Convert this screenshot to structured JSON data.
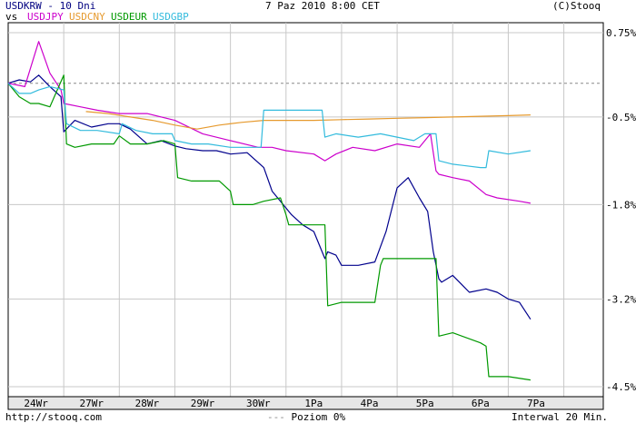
{
  "header": {
    "title": "USDKRW - 10 Dni",
    "vs_label": "vs",
    "date": "7 Paz 2010 8:00 CET",
    "copyright": "(C)Stooq"
  },
  "footer": {
    "url": "http://stooq.com",
    "baseline_label": "Poziom 0%",
    "interval": "Interwal 20 Min."
  },
  "chart_data": {
    "type": "line",
    "x_categories": [
      "24Wr",
      "27Wr",
      "28Wr",
      "29Wr",
      "30Wr",
      "1Pa",
      "4Pa",
      "5Pa",
      "6Pa",
      "7Pa"
    ],
    "y_ticks": [
      "0.75%",
      "-0.5%",
      "-1.8%",
      "-3.2%",
      "-4.5%"
    ],
    "y_tick_values": [
      0.75,
      -0.5,
      -1.8,
      -3.2,
      -4.5
    ],
    "ylim": [
      -4.5,
      0.75
    ],
    "baseline_value": 0,
    "grid": true,
    "legend_placement": "top-left",
    "series": [
      {
        "name": "USDKRW",
        "color": "#00008c",
        "x": [
          0,
          0.2,
          0.4,
          0.55,
          0.75,
          0.95,
          1.0,
          1.2,
          1.5,
          1.8,
          2.0,
          2.2,
          2.5,
          2.75,
          3.0,
          3.2,
          3.5,
          3.75,
          4.0,
          4.3,
          4.6,
          4.75,
          4.9,
          5.1,
          5.3,
          5.5,
          5.7,
          5.75,
          5.9,
          6.0,
          6.3,
          6.6,
          6.8,
          7.0,
          7.2,
          7.4,
          7.55,
          7.65,
          7.75,
          7.8,
          8.0,
          8.3,
          8.6,
          8.8,
          9.0,
          9.2,
          9.4
        ],
        "y": [
          0,
          0.05,
          0.02,
          0.12,
          -0.05,
          -0.2,
          -0.72,
          -0.55,
          -0.65,
          -0.6,
          -0.6,
          -0.68,
          -0.9,
          -0.85,
          -0.93,
          -0.97,
          -1.0,
          -1.0,
          -1.05,
          -1.03,
          -1.25,
          -1.6,
          -1.75,
          -1.95,
          -2.1,
          -2.2,
          -2.6,
          -2.5,
          -2.55,
          -2.7,
          -2.7,
          -2.65,
          -2.2,
          -1.55,
          -1.4,
          -1.7,
          -1.9,
          -2.5,
          -2.9,
          -2.95,
          -2.85,
          -3.1,
          -3.05,
          -3.1,
          -3.2,
          -3.25,
          -3.5
        ]
      },
      {
        "name": "USDJPY",
        "color": "#cc00cc",
        "x": [
          0,
          0.3,
          0.55,
          0.75,
          0.95,
          1.0,
          1.3,
          1.6,
          2.0,
          2.5,
          3.0,
          3.5,
          4.0,
          4.5,
          4.75,
          5.0,
          5.5,
          5.7,
          5.9,
          6.2,
          6.6,
          7.0,
          7.4,
          7.6,
          7.7,
          7.75,
          8.0,
          8.3,
          8.6,
          8.8,
          9.2,
          9.4
        ],
        "y": [
          0,
          -0.05,
          0.62,
          0.15,
          -0.1,
          -0.3,
          -0.35,
          -0.4,
          -0.45,
          -0.45,
          -0.55,
          -0.75,
          -0.85,
          -0.95,
          -0.95,
          -1.0,
          -1.05,
          -1.15,
          -1.05,
          -0.95,
          -1.0,
          -0.9,
          -0.95,
          -0.75,
          -1.3,
          -1.35,
          -1.4,
          -1.45,
          -1.65,
          -1.7,
          -1.75,
          -1.78
        ]
      },
      {
        "name": "USDCNY",
        "color": "#e69a2e",
        "x": [
          1.4,
          1.8,
          2.2,
          2.6,
          3.0,
          3.4,
          3.8,
          4.2,
          4.6,
          5.0,
          5.5,
          6.0,
          6.5,
          7.0,
          7.5,
          8.0,
          8.5,
          9.0,
          9.4
        ],
        "y": [
          -0.42,
          -0.45,
          -0.5,
          -0.55,
          -0.62,
          -0.68,
          -0.62,
          -0.58,
          -0.55,
          -0.55,
          -0.55,
          -0.54,
          -0.53,
          -0.52,
          -0.51,
          -0.5,
          -0.49,
          -0.48,
          -0.47
        ]
      },
      {
        "name": "USDEUR",
        "color": "#009900",
        "x": [
          0,
          0.2,
          0.4,
          0.55,
          0.75,
          1.0,
          1.05,
          1.2,
          1.5,
          1.9,
          2.0,
          2.2,
          2.5,
          2.8,
          3.0,
          3.05,
          3.3,
          3.8,
          4.0,
          4.05,
          4.4,
          4.6,
          4.9,
          5.0,
          5.05,
          5.3,
          5.7,
          5.75,
          6.0,
          6.3,
          6.6,
          6.7,
          6.75,
          7.0,
          7.5,
          7.7,
          7.75,
          8.0,
          8.5,
          8.6,
          8.65,
          9.0,
          9.4
        ],
        "y": [
          0,
          -0.2,
          -0.3,
          -0.3,
          -0.35,
          0.12,
          -0.9,
          -0.95,
          -0.9,
          -0.9,
          -0.78,
          -0.9,
          -0.9,
          -0.85,
          -0.9,
          -1.4,
          -1.45,
          -1.45,
          -1.6,
          -1.8,
          -1.8,
          -1.75,
          -1.7,
          -1.95,
          -2.1,
          -2.1,
          -2.1,
          -3.3,
          -3.25,
          -3.25,
          -3.25,
          -2.7,
          -2.6,
          -2.6,
          -2.6,
          -2.6,
          -3.75,
          -3.7,
          -3.85,
          -3.9,
          -4.35,
          -4.35,
          -4.4
        ]
      },
      {
        "name": "USDGBP",
        "color": "#33bbdd",
        "x": [
          0,
          0.2,
          0.4,
          0.55,
          0.75,
          1.0,
          1.05,
          1.3,
          1.6,
          2.0,
          2.05,
          2.3,
          2.6,
          2.95,
          3.0,
          3.3,
          3.6,
          4.0,
          4.3,
          4.55,
          4.6,
          4.8,
          5.2,
          5.65,
          5.7,
          5.9,
          6.3,
          6.7,
          7.0,
          7.3,
          7.5,
          7.7,
          7.75,
          8.0,
          8.5,
          8.6,
          8.65,
          9.0,
          9.4
        ],
        "y": [
          0,
          -0.15,
          -0.15,
          -0.1,
          -0.05,
          -0.1,
          -0.6,
          -0.7,
          -0.7,
          -0.75,
          -0.6,
          -0.7,
          -0.75,
          -0.75,
          -0.85,
          -0.9,
          -0.9,
          -0.95,
          -0.95,
          -0.95,
          -0.4,
          -0.4,
          -0.4,
          -0.4,
          -0.8,
          -0.75,
          -0.8,
          -0.75,
          -0.8,
          -0.85,
          -0.75,
          -0.75,
          -1.15,
          -1.2,
          -1.25,
          -1.25,
          -1.0,
          -1.05,
          -1.0
        ]
      }
    ]
  }
}
